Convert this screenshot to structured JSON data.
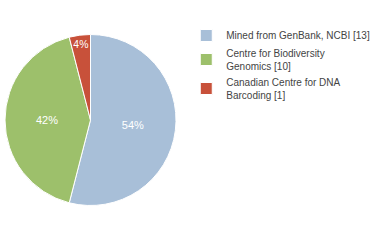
{
  "chart_data": {
    "type": "pie",
    "categories": [
      "Mined from GenBank, NCBI [13]",
      "Centre for Biodiversity\nGenomics [10]",
      "Canadian Centre for DNA\nBarcoding [1]"
    ],
    "values": [
      54,
      42,
      4
    ],
    "value_labels": [
      "54%",
      "42%",
      "4%"
    ],
    "colors": [
      "#a8bfd8",
      "#9dc06b",
      "#c8513a"
    ],
    "data_labels": true,
    "legend": "right"
  }
}
